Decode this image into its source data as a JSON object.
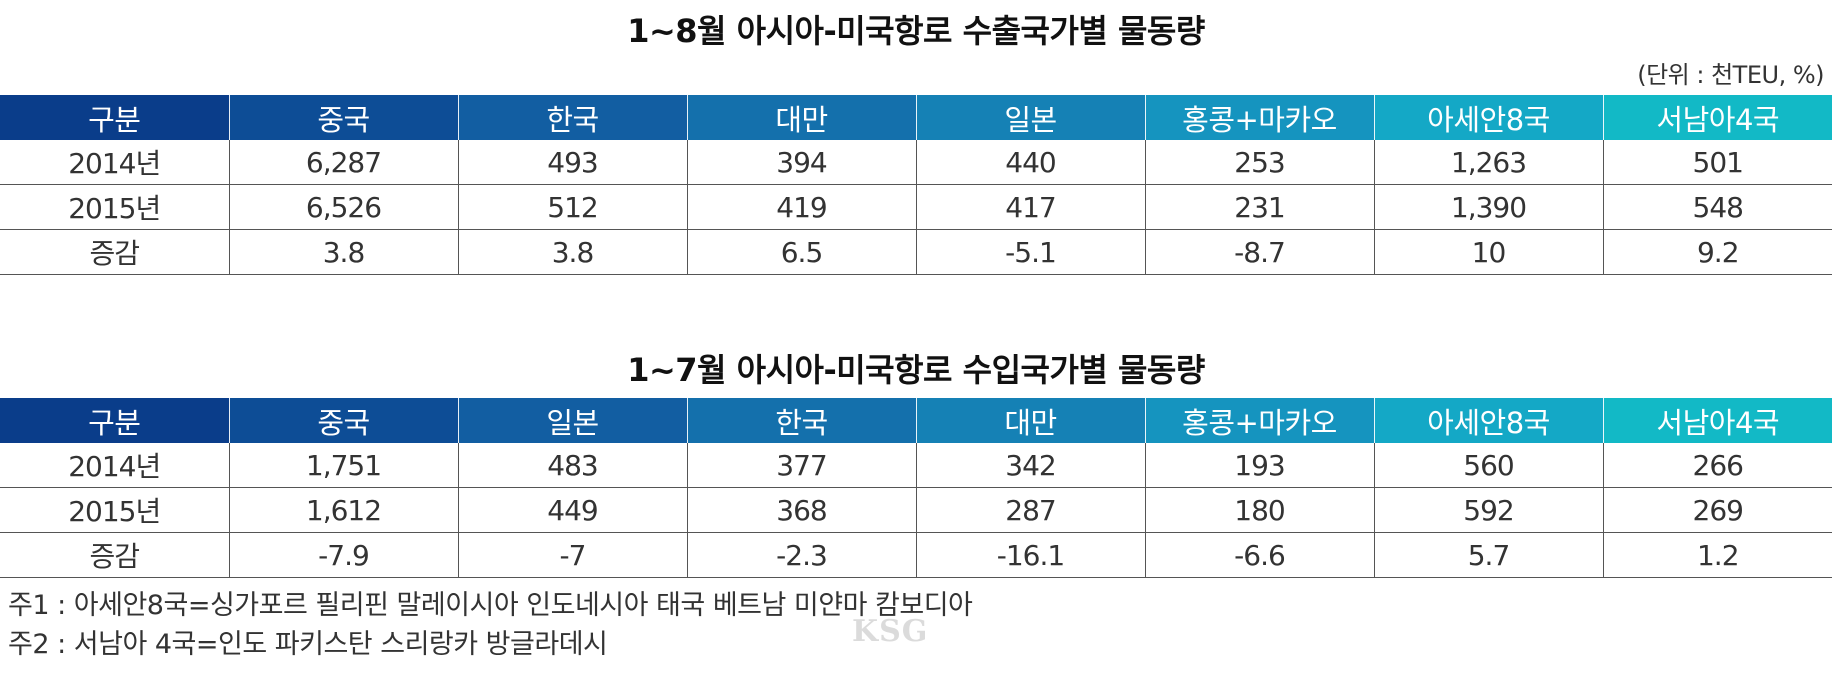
{
  "export_title": "1~8월 아시아-미국항로 수출국가별 물동량",
  "unit": "(단위 : 천TEU, %)",
  "export_table": {
    "headers": [
      "구분",
      "중국",
      "한국",
      "대만",
      "일본",
      "홍콩+마카오",
      "아세안8국",
      "서남아4국"
    ],
    "rows": [
      [
        "2014년",
        "6,287",
        "493",
        "394",
        "440",
        "253",
        "1,263",
        "501"
      ],
      [
        "2015년",
        "6,526",
        "512",
        "419",
        "417",
        "231",
        "1,390",
        "548"
      ],
      [
        "증감",
        "3.8",
        "3.8",
        "6.5",
        "-5.1",
        "-8.7",
        "10",
        "9.2"
      ]
    ]
  },
  "import_title": "1~7월 아시아-미국항로 수입국가별 물동량",
  "import_table": {
    "headers": [
      "구분",
      "중국",
      "일본",
      "한국",
      "대만",
      "홍콩+마카오",
      "아세안8국",
      "서남아4국"
    ],
    "rows": [
      [
        "2014년",
        "1,751",
        "483",
        "377",
        "342",
        "193",
        "560",
        "266"
      ],
      [
        "2015년",
        "1,612",
        "449",
        "368",
        "287",
        "180",
        "592",
        "269"
      ],
      [
        "증감",
        "-7.9",
        "-7",
        "-2.3",
        "-16.1",
        "-6.6",
        "5.7",
        "1.2"
      ]
    ]
  },
  "notes": [
    "주1 : 아세안8국=싱가포르 필리핀 말레이시아 인도네시아 태국 베트남 미얀마 캄보디아",
    "주2 : 서남아 4국=인도 파키스탄 스리랑카 방글라데시"
  ],
  "watermark": "KSG",
  "colors": {
    "header_start": "#0a3d8a",
    "header_end": "#12b9c6"
  }
}
